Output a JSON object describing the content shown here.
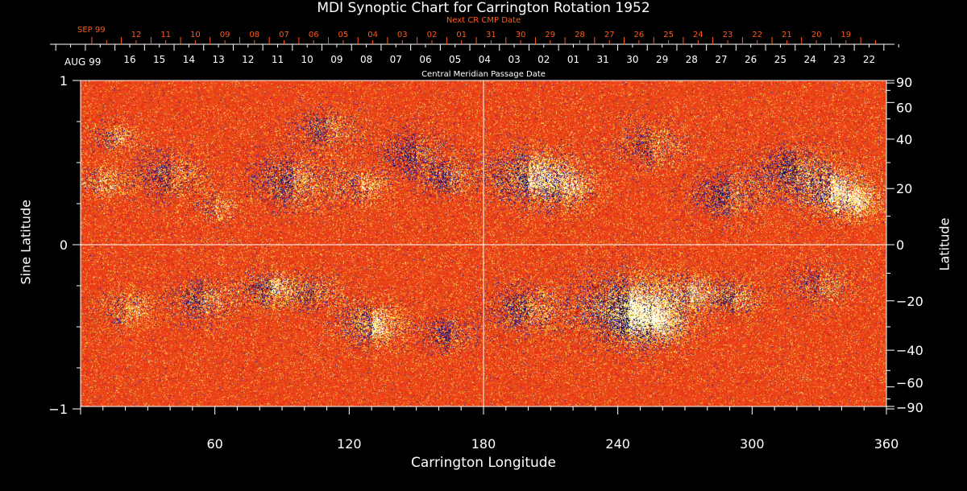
{
  "chart_data": {
    "type": "heatmap",
    "title": "MDI Synoptic Chart for Carrington Rotation 1952",
    "xlabel": "Carrington Longitude",
    "ylabel_left": "Sine Latitude",
    "ylabel_right": "Latitude",
    "xlim": [
      0,
      360
    ],
    "ylim": [
      -1,
      1
    ],
    "x_ticks": [
      "60",
      "120",
      "180",
      "240",
      "300",
      "360"
    ],
    "y_ticks_left": [
      "1",
      "0",
      "−1"
    ],
    "y_ticks_right": [
      "90",
      "60",
      "40",
      "20",
      "0",
      "−20",
      "−40",
      "−60",
      "−90"
    ],
    "y_ticks_right_values": [
      90,
      60,
      40,
      20,
      0,
      -20,
      -40,
      -60,
      -90
    ],
    "top_axis": {
      "label": "Central Meridian Passage Date",
      "month_label": "AUG 99",
      "ticks": [
        "16",
        "15",
        "14",
        "13",
        "12",
        "11",
        "10",
        "09",
        "08",
        "07",
        "06",
        "05",
        "04",
        "03",
        "02",
        "01",
        "31",
        "30",
        "29",
        "28",
        "27",
        "26",
        "25",
        "24",
        "23",
        "22"
      ]
    },
    "next_cr_axis": {
      "label": "Next CR CMP Date",
      "month_label": "SEP 99",
      "ticks": [
        "12",
        "11",
        "10",
        "09",
        "08",
        "07",
        "06",
        "05",
        "04",
        "03",
        "02",
        "01",
        "31",
        "30",
        "29",
        "28",
        "27",
        "26",
        "25",
        "24",
        "23",
        "22",
        "21",
        "20",
        "19"
      ]
    },
    "colors": {
      "background": "#ff5a1a",
      "positive": "#ffffff",
      "negative": "#000050",
      "orange_axis": "#ff5a1a"
    }
  }
}
